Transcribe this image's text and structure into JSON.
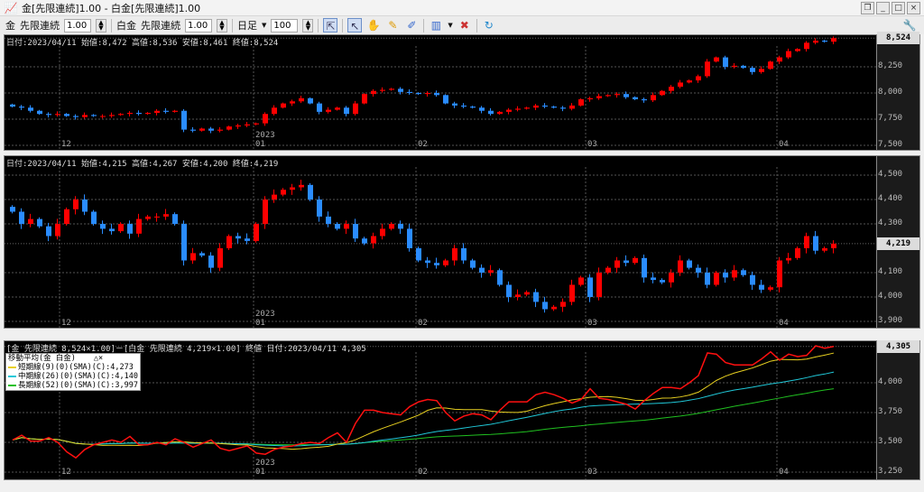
{
  "window": {
    "title": "金[先限連続]1.00 - 白金[先限連続]1.00",
    "buttons": [
      "restore",
      "minimize",
      "maximize",
      "close"
    ]
  },
  "toolbar": {
    "sym1": "金",
    "type1": "先限連続",
    "mult1": "1.00",
    "sym2": "白金",
    "type2": "先限連続",
    "mult2": "1.00",
    "period": "日足",
    "count": "100"
  },
  "colors": {
    "up": "#ff0000",
    "down": "#2a8cff",
    "short_ma": "#e8d020",
    "mid_ma": "#20c8d8",
    "long_ma": "#20c020",
    "spread": "#ff1010"
  },
  "date_labels": [
    "12",
    "01",
    "02",
    "03",
    "04"
  ],
  "year_label": "2023",
  "pane1": {
    "info": "日付:2023/04/11 始値:8,472 高値:8,536 安値:8,461 終値:8,524",
    "last": "8,524",
    "ticks": [
      "8,250",
      "8,000",
      "7,750",
      "7,500"
    ]
  },
  "pane2": {
    "info": "日付:2023/04/11 始値:4,215 高値:4,267 安値:4,200 終値:4,219",
    "last": "4,219",
    "ticks": [
      "4,500",
      "4,400",
      "4,300",
      "4,100",
      "4,000",
      "3,900"
    ]
  },
  "pane3": {
    "info": "[金 先限連続 8,524×1.00]－[白金 先限連続 4,219×1.00] 終値 日付:2023/04/11 4,305",
    "last": "4,305",
    "ticks": [
      "4,000",
      "3,750",
      "3,500",
      "3,250"
    ],
    "legend": {
      "title": "移動平均(金 白金)",
      "items": [
        "短期線(9)(0)(SMA)(C):4,273",
        "中期線(26)(0)(SMA)(C):4,140",
        "長期線(52)(0)(SMA)(C):3,997"
      ]
    }
  },
  "chart_data": [
    {
      "type": "candlestick",
      "series": "金",
      "ylim": [
        7500,
        8550
      ],
      "close": [
        7870,
        7860,
        7830,
        7800,
        7790,
        7800,
        7780,
        7770,
        7790,
        7780,
        7780,
        7790,
        7800,
        7810,
        7800,
        7810,
        7830,
        7820,
        7830,
        7650,
        7640,
        7660,
        7640,
        7650,
        7680,
        7690,
        7700,
        7710,
        7800,
        7860,
        7900,
        7920,
        7950,
        7900,
        7820,
        7840,
        7860,
        7800,
        7900,
        7990,
        8020,
        8030,
        8040,
        8010,
        8000,
        7990,
        8000,
        7980,
        7900,
        7880,
        7870,
        7860,
        7830,
        7800,
        7820,
        7840,
        7850,
        7860,
        7880,
        7870,
        7860,
        7850,
        7880,
        7940,
        7950,
        7970,
        7980,
        7990,
        7960,
        7940,
        7930,
        7980,
        8020,
        8060,
        8100,
        8120,
        8160,
        8300,
        8340,
        8250,
        8260,
        8240,
        8200,
        8230,
        8300,
        8340,
        8400,
        8420,
        8480,
        8500,
        8490,
        8524
      ]
    },
    {
      "type": "candlestick",
      "series": "白金",
      "ylim": [
        3880,
        4560
      ],
      "close": [
        4350,
        4300,
        4320,
        4290,
        4250,
        4300,
        4360,
        4400,
        4350,
        4300,
        4280,
        4270,
        4300,
        4260,
        4320,
        4330,
        4330,
        4340,
        4300,
        4150,
        4180,
        4170,
        4120,
        4200,
        4250,
        4240,
        4230,
        4300,
        4400,
        4420,
        4440,
        4450,
        4460,
        4400,
        4330,
        4300,
        4280,
        4300,
        4240,
        4220,
        4250,
        4280,
        4300,
        4280,
        4200,
        4150,
        4140,
        4130,
        4150,
        4200,
        4150,
        4120,
        4100,
        4110,
        4050,
        4000,
        4010,
        4020,
        3980,
        3950,
        3960,
        3980,
        4050,
        4080,
        4000,
        4100,
        4120,
        4150,
        4140,
        4160,
        4080,
        4070,
        4060,
        4100,
        4150,
        4120,
        4100,
        4050,
        4100,
        4080,
        4110,
        4090,
        4050,
        4030,
        4040,
        4150,
        4160,
        4200,
        4250,
        4190,
        4200,
        4219
      ]
    },
    {
      "type": "line",
      "ylim": [
        3250,
        4400
      ]
    }
  ]
}
